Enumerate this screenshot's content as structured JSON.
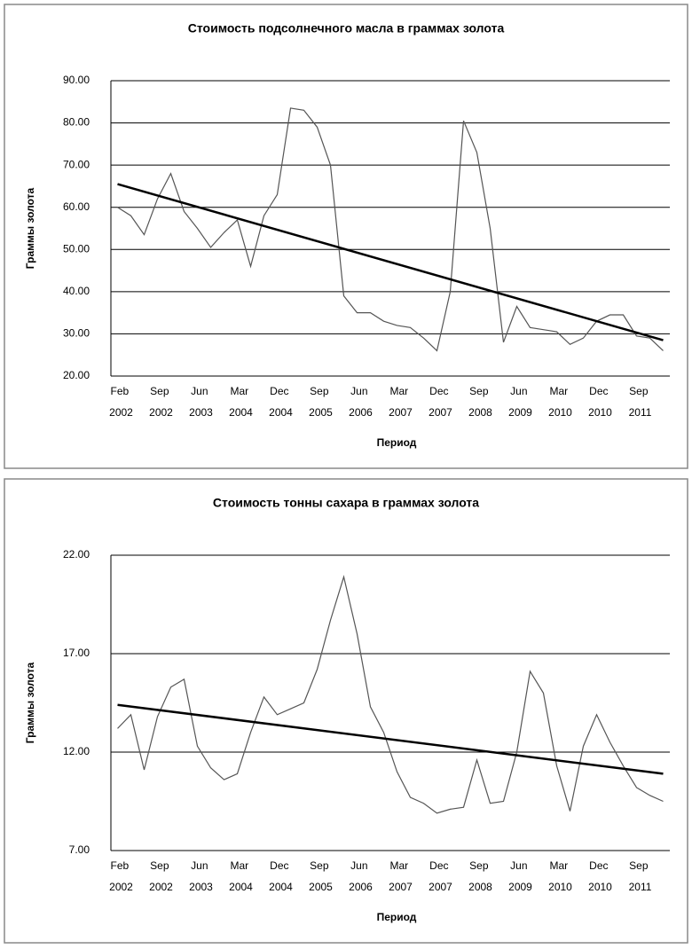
{
  "chart_data": [
    {
      "type": "line",
      "title": "Стоимость подсолнечного масла в граммах золота",
      "y_label": "Граммы золота",
      "x_label": "Период",
      "categories": [
        "Feb 2002",
        null,
        null,
        "Sep 2002",
        null,
        null,
        "Jun 2003",
        null,
        null,
        "Mar 2004",
        null,
        null,
        "Dec 2004",
        null,
        null,
        "Sep 2005",
        null,
        null,
        "Jun 2006",
        null,
        null,
        "Mar 2007",
        null,
        null,
        "Dec 2007",
        null,
        null,
        "Sep 2008",
        null,
        null,
        "Jun 2009",
        null,
        null,
        "Mar 2010",
        null,
        null,
        "Dec 2010",
        null,
        null,
        "Sep 2011",
        null,
        null
      ],
      "series": [
        {
          "color": "#555555",
          "values": [
            60,
            58,
            53.5,
            62,
            68,
            59,
            55,
            50.5,
            54,
            57,
            46,
            58,
            63,
            83.5,
            83,
            79,
            70,
            39,
            35,
            35,
            33,
            32,
            31.5,
            29,
            26,
            40,
            80.5,
            73,
            55,
            28,
            36.5,
            31.5,
            31,
            30.5,
            27.5,
            29,
            33,
            34.5,
            34.5,
            29.5,
            29,
            26
          ]
        }
      ],
      "trend": [
        65.5,
        28.5
      ],
      "trend_color": "#000000",
      "ylim": [
        20,
        90
      ],
      "yticks": [
        {
          "value": 20,
          "label": "20.00"
        },
        {
          "value": 30,
          "label": "30.00"
        },
        {
          "value": 40,
          "label": "40.00"
        },
        {
          "value": 50,
          "label": "50.00"
        },
        {
          "value": 60,
          "label": "60.00"
        },
        {
          "value": 70,
          "label": "70.00"
        },
        {
          "value": 80,
          "label": "80.00"
        },
        {
          "value": 90,
          "label": "90.00"
        }
      ],
      "grid": true
    },
    {
      "type": "line",
      "title": "Стоимость тонны сахара в граммах золота",
      "y_label": "Граммы золота",
      "x_label": "Период",
      "categories": [
        "Feb 2002",
        null,
        null,
        "Sep 2002",
        null,
        null,
        "Jun 2003",
        null,
        null,
        "Mar 2004",
        null,
        null,
        "Dec 2004",
        null,
        null,
        "Sep 2005",
        null,
        null,
        "Jun 2006",
        null,
        null,
        "Mar 2007",
        null,
        null,
        "Dec 2007",
        null,
        null,
        "Sep 2008",
        null,
        null,
        "Jun 2009",
        null,
        null,
        "Mar 2010",
        null,
        null,
        "Dec 2010",
        null,
        null,
        "Sep 2011",
        null,
        null
      ],
      "series": [
        {
          "color": "#555555",
          "values": [
            13.2,
            13.9,
            11.1,
            13.8,
            15.3,
            15.7,
            12.3,
            11.2,
            10.6,
            10.9,
            13,
            14.8,
            13.9,
            14.2,
            14.5,
            16.2,
            18.7,
            20.9,
            18,
            14.3,
            13,
            11,
            9.7,
            9.4,
            8.9,
            9.1,
            9.2,
            11.6,
            9.4,
            9.5,
            12,
            16.1,
            15,
            11.3,
            9,
            12.3,
            13.9,
            12.5,
            11.3,
            10.2,
            9.8,
            9.5
          ]
        }
      ],
      "trend": [
        14.4,
        10.9
      ],
      "trend_color": "#000000",
      "ylim": [
        7,
        22
      ],
      "yticks": [
        {
          "value": 7,
          "label": "7.00"
        },
        {
          "value": 12,
          "label": "12.00"
        },
        {
          "value": 17,
          "label": "17.00"
        },
        {
          "value": 22,
          "label": "22.00"
        }
      ],
      "grid": true
    }
  ]
}
